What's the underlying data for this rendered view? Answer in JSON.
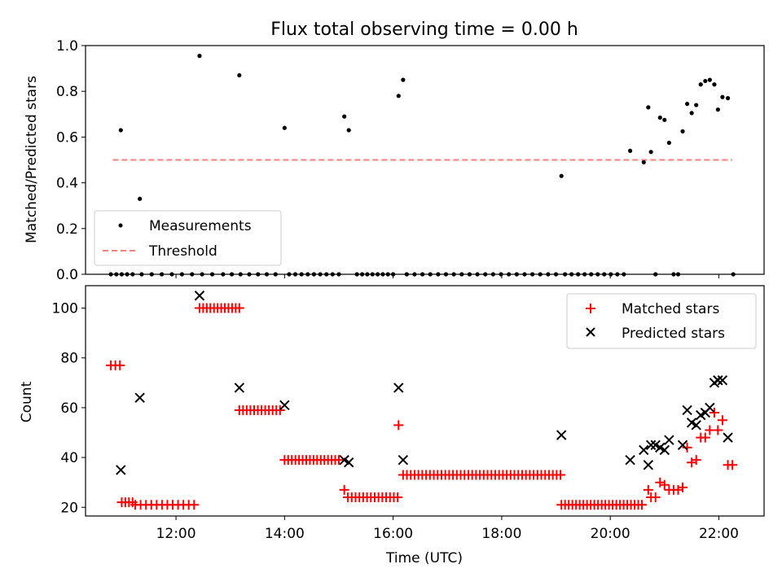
{
  "title": "Flux total observing time = 0.00 h",
  "colors": {
    "measurement": "#000000",
    "threshold": "#ff7f7f",
    "matched": "#ff0000",
    "predicted": "#000000"
  },
  "chart_data": [
    {
      "type": "scatter",
      "title": "Flux total observing time = 0.00 h",
      "xlabel": "",
      "ylabel": "Matched/Predicted stars",
      "xlim": [
        "10:20",
        "22:50"
      ],
      "ylim": [
        0,
        1.0
      ],
      "yticks": [
        "0.0",
        "0.2",
        "0.4",
        "0.6",
        "0.8",
        "1.0"
      ],
      "xticks": [
        "12:00",
        "14:00",
        "16:00",
        "18:00",
        "20:00",
        "22:00"
      ],
      "legend": {
        "placement": "lower-left",
        "entries": [
          "Measurements",
          "Threshold"
        ]
      },
      "threshold": {
        "name": "Threshold",
        "y": 0.5,
        "x": [
          "10:50",
          "22:15"
        ]
      },
      "measurements": {
        "name": "Measurements",
        "points": [
          [
            "10:59",
            0.63
          ],
          [
            "11:20",
            0.33
          ],
          [
            "12:26",
            0.955
          ],
          [
            "13:10",
            0.87
          ],
          [
            "14:00",
            0.64
          ],
          [
            "15:06",
            0.69
          ],
          [
            "15:11",
            0.63
          ],
          [
            "16:06",
            0.78
          ],
          [
            "16:11",
            0.85
          ],
          [
            "19:06",
            0.43
          ],
          [
            "20:22",
            0.54
          ],
          [
            "20:37",
            0.49
          ],
          [
            "20:42",
            0.73
          ],
          [
            "20:45",
            0.535
          ],
          [
            "20:55",
            0.685
          ],
          [
            "21:00",
            0.675
          ],
          [
            "21:05",
            0.575
          ],
          [
            "21:20",
            0.625
          ],
          [
            "21:25",
            0.745
          ],
          [
            "21:30",
            0.705
          ],
          [
            "21:35",
            0.74
          ],
          [
            "21:40",
            0.83
          ],
          [
            "21:45",
            0.845
          ],
          [
            "21:50",
            0.85
          ],
          [
            "21:55",
            0.83
          ],
          [
            "21:59",
            0.72
          ],
          [
            "22:04",
            0.775
          ],
          [
            "22:10",
            0.77
          ]
        ],
        "zero_runs": [
          [
            "10:48",
            "11:12",
            5
          ],
          [
            "11:22",
            "12:40",
            8
          ],
          [
            "12:52",
            "13:50",
            7
          ],
          [
            "14:05",
            "15:00",
            9
          ],
          [
            "15:20",
            "16:00",
            8
          ],
          [
            "16:15",
            "19:00",
            20
          ],
          [
            "19:10",
            "20:15",
            10
          ],
          [
            "20:50",
            "20:50",
            1
          ],
          [
            "21:10",
            "21:15",
            2
          ],
          [
            "22:16",
            "22:16",
            1
          ]
        ]
      }
    },
    {
      "type": "scatter",
      "title": "",
      "xlabel": "Time (UTC)",
      "ylabel": "Count",
      "xlim": [
        "10:20",
        "22:50"
      ],
      "ylim": [
        16.5,
        109
      ],
      "yticks": [
        "20",
        "40",
        "60",
        "80",
        "100"
      ],
      "xticks": [
        "12:00",
        "14:00",
        "16:00",
        "18:00",
        "20:00",
        "22:00"
      ],
      "legend": {
        "placement": "top-right",
        "entries": [
          "Matched stars",
          "Predicted stars"
        ]
      },
      "series": [
        {
          "name": "Matched stars",
          "marker": "+",
          "runs": [
            [
              "10:48",
              "10:58",
              77,
              3
            ],
            [
              "11:00",
              "11:12",
              22,
              4
            ],
            [
              "11:15",
              "12:20",
              21,
              12
            ],
            [
              "12:26",
              "13:10",
              100,
              12
            ],
            [
              "13:10",
              "13:55",
              59,
              12
            ],
            [
              "14:00",
              "15:00",
              39,
              16
            ],
            [
              "15:06",
              "15:06",
              27,
              1
            ],
            [
              "15:10",
              "16:05",
              24,
              14
            ],
            [
              "16:06",
              "16:06",
              53,
              1
            ],
            [
              "16:11",
              "19:05",
              33,
              42
            ],
            [
              "19:06",
              "20:35",
              21,
              23
            ]
          ],
          "points": [
            [
              "20:42",
              27
            ],
            [
              "20:45",
              24
            ],
            [
              "20:50",
              24
            ],
            [
              "20:55",
              30
            ],
            [
              "21:00",
              29
            ],
            [
              "21:05",
              27
            ],
            [
              "21:10",
              27
            ],
            [
              "21:15",
              27
            ],
            [
              "21:20",
              28
            ],
            [
              "21:25",
              44
            ],
            [
              "21:30",
              38
            ],
            [
              "21:35",
              39
            ],
            [
              "21:40",
              48
            ],
            [
              "21:45",
              48
            ],
            [
              "21:50",
              51
            ],
            [
              "21:55",
              58
            ],
            [
              "21:59",
              51
            ],
            [
              "22:04",
              55
            ],
            [
              "22:10",
              37
            ],
            [
              "22:15",
              37
            ]
          ]
        },
        {
          "name": "Predicted stars",
          "marker": "x",
          "points": [
            [
              "10:59",
              35
            ],
            [
              "11:20",
              64
            ],
            [
              "12:26",
              105
            ],
            [
              "13:10",
              68
            ],
            [
              "14:00",
              61
            ],
            [
              "15:06",
              39
            ],
            [
              "15:11",
              38
            ],
            [
              "16:06",
              68
            ],
            [
              "16:11",
              39
            ],
            [
              "19:06",
              49
            ],
            [
              "20:22",
              39
            ],
            [
              "20:37",
              43
            ],
            [
              "20:42",
              37
            ],
            [
              "20:45",
              45
            ],
            [
              "20:50",
              45
            ],
            [
              "20:55",
              44
            ],
            [
              "21:00",
              43
            ],
            [
              "21:05",
              47
            ],
            [
              "21:20",
              45
            ],
            [
              "21:25",
              59
            ],
            [
              "21:30",
              54
            ],
            [
              "21:35",
              53
            ],
            [
              "21:40",
              57
            ],
            [
              "21:45",
              58
            ],
            [
              "21:50",
              60
            ],
            [
              "21:55",
              70
            ],
            [
              "21:59",
              71
            ],
            [
              "22:04",
              71
            ],
            [
              "22:10",
              48
            ]
          ]
        }
      ]
    }
  ]
}
